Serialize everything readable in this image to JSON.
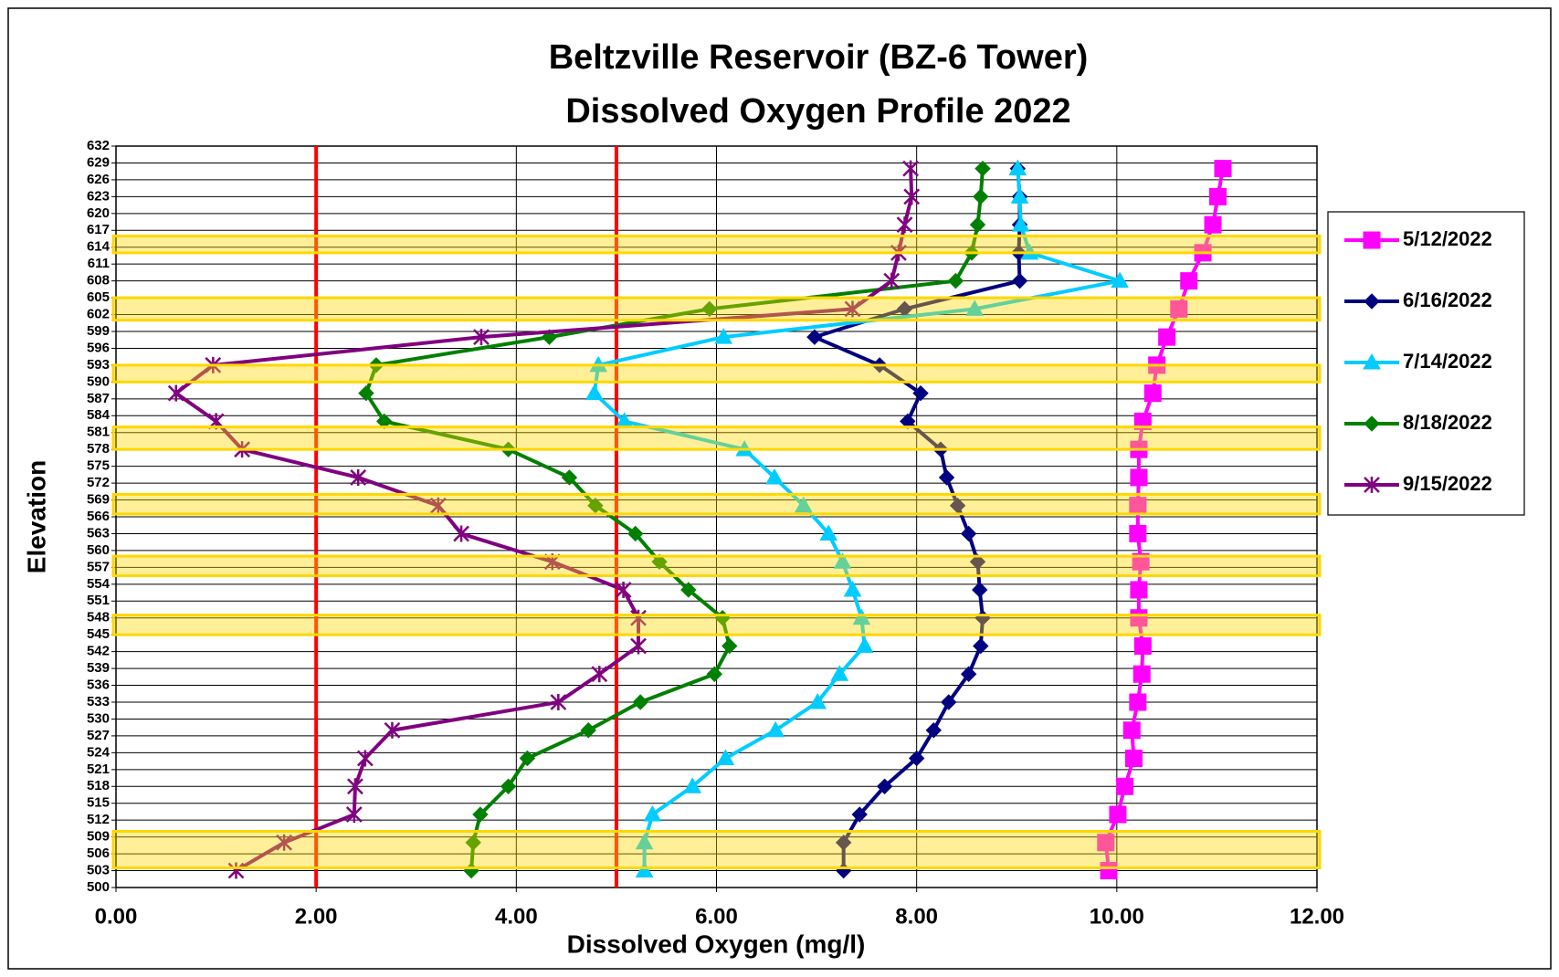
{
  "chart_data": {
    "type": "line",
    "title": [
      "Beltzville Reservoir (BZ-6 Tower)",
      "Dissolved Oxygen Profile 2022"
    ],
    "xlabel": "Dissolved Oxygen (mg/l)",
    "ylabel": "Elevation",
    "xlim": [
      0,
      12
    ],
    "xticks": [
      {
        "value": 0,
        "label": "0.00"
      },
      {
        "value": 2,
        "label": "2.00"
      },
      {
        "value": 4,
        "label": "4.00"
      },
      {
        "value": 6,
        "label": "6.00"
      },
      {
        "value": 8,
        "label": "8.00"
      },
      {
        "value": 10,
        "label": "10.00"
      },
      {
        "value": 12,
        "label": "12.00"
      }
    ],
    "ylim": [
      500,
      632
    ],
    "yticks": [
      500,
      503,
      506,
      509,
      512,
      515,
      518,
      521,
      524,
      527,
      530,
      533,
      536,
      539,
      542,
      545,
      548,
      551,
      554,
      557,
      560,
      563,
      566,
      569,
      572,
      575,
      578,
      581,
      584,
      587,
      590,
      593,
      596,
      599,
      602,
      605,
      608,
      611,
      614,
      617,
      620,
      623,
      626,
      629,
      632
    ],
    "grid": true,
    "legend": "right",
    "elevation": [
      628,
      623,
      618,
      613,
      608,
      603,
      598,
      593,
      588,
      583,
      578,
      573,
      568,
      563,
      558,
      553,
      548,
      543,
      538,
      533,
      528,
      523,
      518,
      513,
      508,
      503
    ],
    "series": [
      {
        "name": "5/12/2022",
        "color": "#ff00ff",
        "marker": "square",
        "values": [
          11.06,
          11.01,
          10.96,
          10.86,
          10.72,
          10.62,
          10.5,
          10.4,
          10.36,
          10.26,
          10.22,
          10.22,
          10.21,
          10.21,
          10.24,
          10.22,
          10.22,
          10.26,
          10.25,
          10.21,
          10.15,
          10.17,
          10.08,
          10.01,
          9.89,
          9.92
        ]
      },
      {
        "name": "6/16/2022",
        "color": "#000080",
        "marker": "diamond",
        "values": [
          9.01,
          9.03,
          9.03,
          9.02,
          9.03,
          7.88,
          6.98,
          7.63,
          8.04,
          7.91,
          8.24,
          8.3,
          8.41,
          8.52,
          8.61,
          8.63,
          8.66,
          8.64,
          8.52,
          8.32,
          8.17,
          8.0,
          7.68,
          7.43,
          7.27,
          7.27
        ]
      },
      {
        "name": "7/14/2022",
        "color": "#00ccff",
        "marker": "triangle",
        "values": [
          9.01,
          9.03,
          9.04,
          9.13,
          10.03,
          8.58,
          6.07,
          4.82,
          4.78,
          5.08,
          6.28,
          6.58,
          6.87,
          7.12,
          7.26,
          7.36,
          7.45,
          7.48,
          7.23,
          7.01,
          6.59,
          6.09,
          5.76,
          5.36,
          5.28,
          5.28
        ]
      },
      {
        "name": "8/18/2022",
        "color": "#008000",
        "marker": "diamond",
        "values": [
          8.66,
          8.64,
          8.61,
          8.55,
          8.39,
          5.93,
          4.33,
          2.6,
          2.5,
          2.68,
          3.92,
          4.53,
          4.79,
          5.19,
          5.43,
          5.72,
          6.06,
          6.13,
          5.98,
          5.24,
          4.72,
          4.11,
          3.92,
          3.64,
          3.57,
          3.55
        ]
      },
      {
        "name": "9/15/2022",
        "color": "#800080",
        "marker": "star",
        "values": [
          7.94,
          7.95,
          7.88,
          7.82,
          7.75,
          7.36,
          3.65,
          0.97,
          0.6,
          1.0,
          1.26,
          2.42,
          3.22,
          3.45,
          4.36,
          5.07,
          5.22,
          5.22,
          4.83,
          4.42,
          2.76,
          2.49,
          2.39,
          2.38,
          1.68,
          1.2
        ]
      }
    ],
    "reference_lines": {
      "values": [
        2,
        5
      ],
      "color": "#ff0000"
    },
    "highlight_bands": {
      "color": "#ffd700",
      "ranges": [
        [
          613,
          616
        ],
        [
          601,
          605
        ],
        [
          590,
          593
        ],
        [
          578,
          582
        ],
        [
          566.5,
          570
        ],
        [
          555.5,
          559
        ],
        [
          545,
          548.5
        ],
        [
          503.5,
          510
        ]
      ]
    }
  }
}
